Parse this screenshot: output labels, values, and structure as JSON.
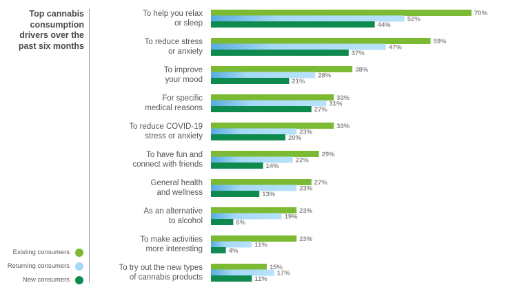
{
  "chart_data": {
    "type": "bar",
    "orientation": "horizontal",
    "title": "Top cannabis\nconsumption\ndrivers over the\npast six months",
    "categories": [
      "To help you relax\nor sleep",
      "To reduce stress\nor anxiety",
      "To improve\nyour mood",
      "For specific\nmedical reasons",
      "To reduce COVID-19\nstress or anxiety",
      "To have fun and\nconnect with friends",
      "General health\nand wellness",
      "As an alternative\nto alcohol",
      "To make activities\nmore interesting",
      "To try out the new types\nof cannabis products"
    ],
    "series": [
      {
        "name": "Existing consumers",
        "color": "#7cba33",
        "values": [
          70,
          59,
          38,
          33,
          33,
          29,
          27,
          23,
          23,
          15
        ]
      },
      {
        "name": "Returning consumers",
        "color": "#a6d9f7",
        "values": [
          52,
          47,
          28,
          31,
          23,
          22,
          23,
          19,
          11,
          17
        ]
      },
      {
        "name": "New consumers",
        "color": "#0e8a4f",
        "values": [
          44,
          37,
          21,
          27,
          20,
          14,
          13,
          6,
          4,
          11
        ]
      }
    ],
    "value_suffix": "%",
    "xlim": [
      0,
      100
    ],
    "grid": false,
    "legend_position": "bottom-left"
  }
}
